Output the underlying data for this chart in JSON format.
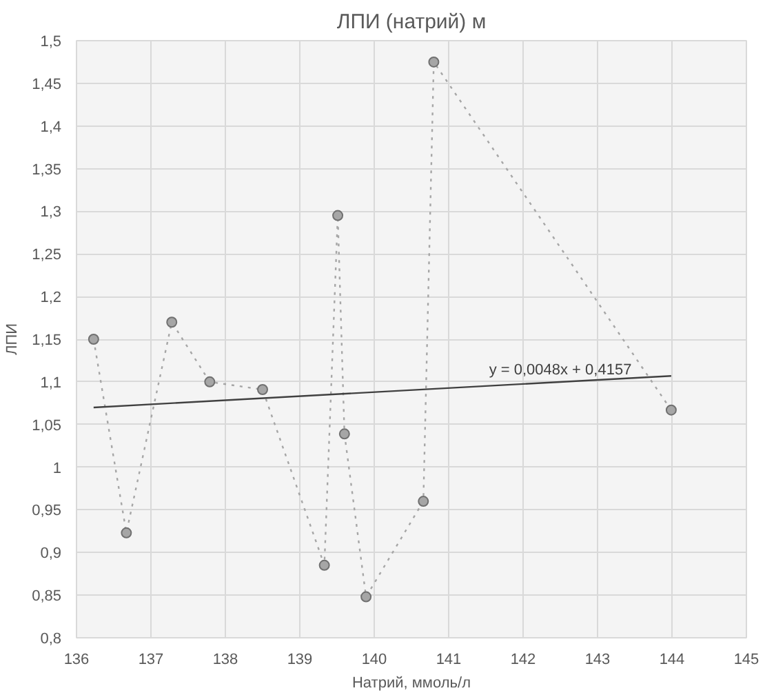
{
  "chart_data": {
    "type": "line",
    "title": "ЛПИ (натрий) м",
    "xlabel": "Натрий, ммоль/л",
    "ylabel": "ЛПИ",
    "xlim": [
      136,
      145
    ],
    "xticks": [
      136,
      137,
      138,
      139,
      140,
      141,
      142,
      143,
      144,
      145
    ],
    "ylim": [
      0.8,
      1.5
    ],
    "yticks": [
      {
        "value": 0.8,
        "label": "0,8"
      },
      {
        "value": 0.85,
        "label": "0,85"
      },
      {
        "value": 0.9,
        "label": "0,9"
      },
      {
        "value": 0.95,
        "label": "0,95"
      },
      {
        "value": 1,
        "label": "1"
      },
      {
        "value": 1.05,
        "label": "1,05"
      },
      {
        "value": 1.1,
        "label": "1,1"
      },
      {
        "value": 1.15,
        "label": "1,15"
      },
      {
        "value": 1.2,
        "label": "1,2"
      },
      {
        "value": 1.25,
        "label": "1,25"
      },
      {
        "value": 1.3,
        "label": "1,3"
      },
      {
        "value": 1.35,
        "label": "1,35"
      },
      {
        "value": 1.4,
        "label": "1,4"
      },
      {
        "value": 1.45,
        "label": "1,45"
      },
      {
        "value": 1.5,
        "label": "1,5"
      }
    ],
    "grid": true,
    "series": [
      {
        "color": "#a6a6a6",
        "marker": "circle",
        "line_style": "dotted",
        "x": [
          136.23,
          136.67,
          137.28,
          137.79,
          138.5,
          139.33,
          139.51,
          139.6,
          139.89,
          140.66,
          140.8,
          143.99
        ],
        "values": [
          1.15,
          0.923,
          1.17,
          1.1,
          1.091,
          0.885,
          1.295,
          1.039,
          0.848,
          0.96,
          1.475,
          1.067
        ]
      },
      {
        "color": "#404040",
        "marker": "none",
        "line_style": "solid",
        "x": [
          136.23,
          143.99
        ],
        "values": [
          1.07,
          1.107
        ]
      }
    ],
    "annotations": [
      {
        "text": "y = 0,0048x + 0,4157",
        "x": 142.5,
        "y": 1.104
      }
    ]
  }
}
